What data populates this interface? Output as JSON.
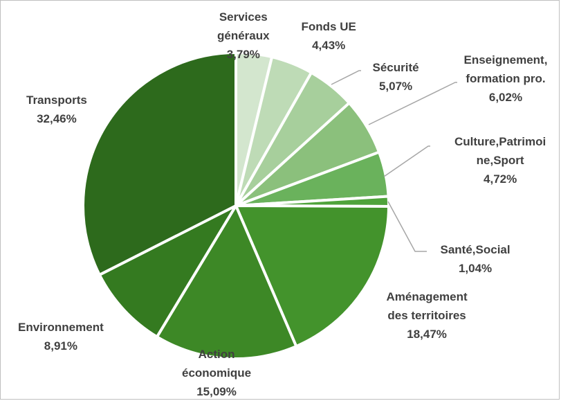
{
  "chart_data": {
    "type": "pie",
    "title": "",
    "categories": [
      "Services généraux",
      "Fonds UE",
      "Sécurité",
      "Enseignement, formation pro.",
      "Culture,Patrimoine,Sport",
      "Santé,Social",
      "Aménagement des territoires",
      "Action économique",
      "Environnement",
      "Transports"
    ],
    "values": [
      3.79,
      4.43,
      5.07,
      6.02,
      4.72,
      1.04,
      18.47,
      15.09,
      8.91,
      32.46
    ],
    "colors": [
      "#d3e6ce",
      "#bedbb6",
      "#a7cf9c",
      "#8bc07c",
      "#6ab25c",
      "#4fa33b",
      "#43932c",
      "#3d8826",
      "#347a20",
      "#2d6a1c"
    ],
    "slice_border_color": "#ffffff",
    "legend": "none",
    "data_labels": [
      {
        "name_lines": [
          "Services",
          "généraux"
        ],
        "pct": "3,79%"
      },
      {
        "name_lines": [
          "Fonds UE"
        ],
        "pct": "4,43%"
      },
      {
        "name_lines": [
          "Sécurité"
        ],
        "pct": "5,07%"
      },
      {
        "name_lines": [
          "Enseignement,",
          "formation pro."
        ],
        "pct": "6,02%"
      },
      {
        "name_lines": [
          "Culture,Patrimoi",
          "ne,Sport"
        ],
        "pct": "4,72%"
      },
      {
        "name_lines": [
          "Santé,Social"
        ],
        "pct": "1,04%"
      },
      {
        "name_lines": [
          "Aménagement",
          "des territoires"
        ],
        "pct": "18,47%"
      },
      {
        "name_lines": [
          "Action",
          "économique"
        ],
        "pct": "15,09%"
      },
      {
        "name_lines": [
          "Environnement"
        ],
        "pct": "8,91%"
      },
      {
        "name_lines": [
          "Transports"
        ],
        "pct": "32,46%"
      }
    ]
  }
}
